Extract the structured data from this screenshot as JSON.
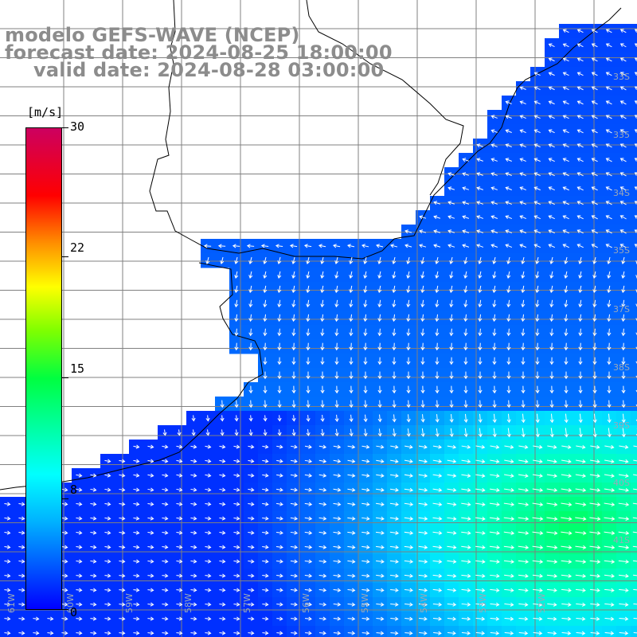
{
  "title": {
    "line1": "modelo GEFS-WAVE (NCEP)",
    "line2": "forecast date: 2024-08-25 18:00:00",
    "line3": "valid date: 2024-08-28 03:00:00"
  },
  "colorbar": {
    "units": "[m/s]",
    "ticks": [
      {
        "label": "30",
        "value": 30
      },
      {
        "label": "22",
        "value": 22
      },
      {
        "label": "15",
        "value": 15
      },
      {
        "label": "8",
        "value": 8
      },
      {
        "label": "0",
        "value": 0
      }
    ],
    "min": 0,
    "max": 30
  },
  "axes": {
    "lat_labels": [
      "33S",
      "335",
      "34S",
      "35S",
      "37S",
      "38S",
      "39S",
      "40S",
      "41S"
    ],
    "lon_labels": [
      "61W",
      "60W",
      "59W",
      "58W",
      "57W",
      "56W",
      "55W",
      "54W",
      "53W",
      "52W"
    ]
  },
  "colors": {
    "low_wind": "#0a4cff",
    "mid_wind": "#0fb0ff",
    "high_wind": "#10f060",
    "land": "#ffffff",
    "title_gray": "#8c8c8c",
    "grid": "#808080"
  }
}
